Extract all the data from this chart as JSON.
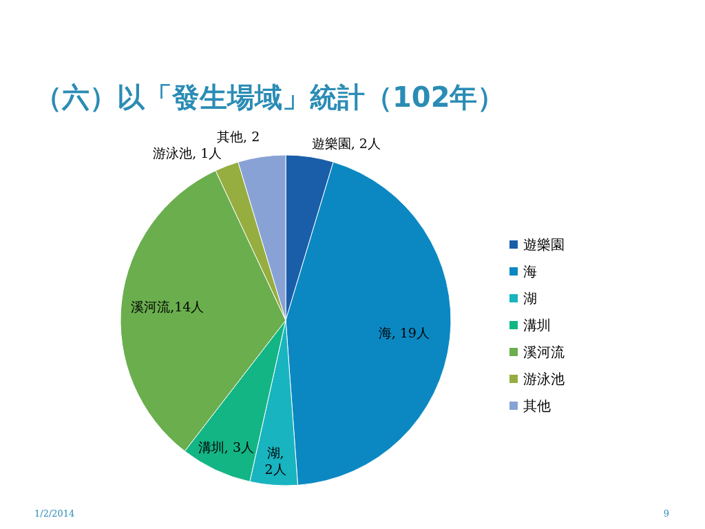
{
  "chart_data": {
    "type": "pie",
    "title": "（六）以「發生場域」統計（102年）",
    "categories": [
      "遊樂園",
      "海",
      "湖",
      "溝圳",
      "溪河流",
      "游泳池",
      "其他"
    ],
    "values": [
      2,
      19,
      2,
      3,
      14,
      1,
      2
    ],
    "colors": [
      "#1a5ea9",
      "#0b88c2",
      "#18b4bf",
      "#13b585",
      "#6aae4e",
      "#96ad40",
      "#89a2d6"
    ],
    "value_labels": [
      "遊樂園, 2人",
      "海, 19人",
      "湖, 2人",
      "溝圳, 3人",
      "溪河流,14人",
      "游泳池, 1人",
      "其他, 2"
    ],
    "legend": "right",
    "annotations": [
      "1/2/2014",
      "9"
    ]
  }
}
